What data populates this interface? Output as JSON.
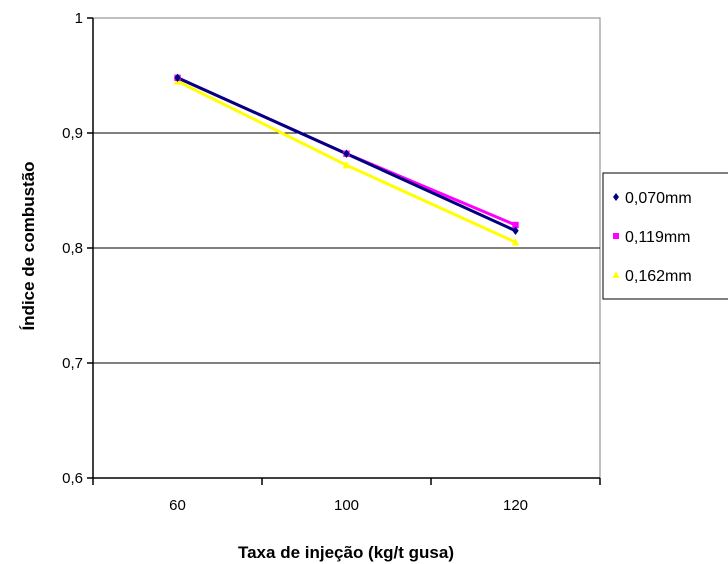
{
  "chart_data": {
    "type": "line",
    "title": "",
    "xlabel": "Taxa de injeção (kg/t gusa)",
    "ylabel": "Índice de combustão",
    "categories": [
      "60",
      "100",
      "120"
    ],
    "ylim": [
      0.6,
      1
    ],
    "yticks": [
      "0,6",
      "0,7",
      "0,8",
      "0,9",
      "1"
    ],
    "grid": true,
    "legend_position": "right",
    "series": [
      {
        "name": "0,070mm",
        "values": [
          0.948,
          0.882,
          0.815
        ],
        "color": "#000080",
        "marker": "diamond"
      },
      {
        "name": "0,119mm",
        "values": [
          0.948,
          0.882,
          0.82
        ],
        "color": "#ff00ff",
        "marker": "square"
      },
      {
        "name": "0,162mm",
        "values": [
          0.945,
          0.872,
          0.805
        ],
        "color": "#ffff00",
        "marker": "triangle"
      }
    ]
  }
}
